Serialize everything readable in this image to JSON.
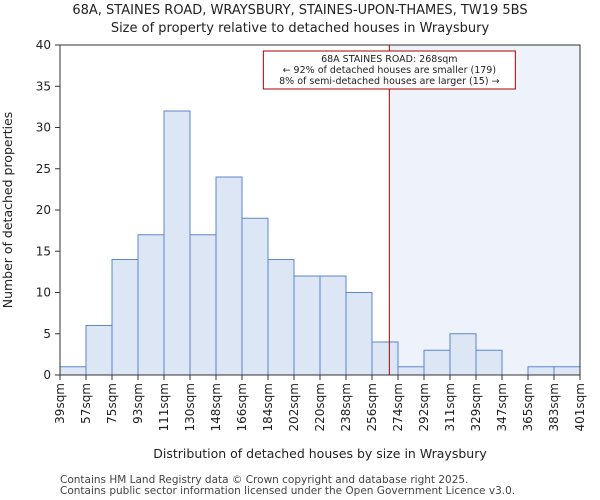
{
  "chart_data": {
    "type": "bar",
    "title": "68A, STAINES ROAD, WRAYSBURY, STAINES-UPON-THAMES, TW19 5BS",
    "subtitle": "Size of property relative to detached houses in Wraysbury",
    "xlabel": "Distribution of detached houses by size in Wraysbury",
    "ylabel": "Number of detached properties",
    "bin_edges": [
      39,
      57,
      75,
      93,
      111,
      130,
      148,
      166,
      184,
      202,
      220,
      238,
      256,
      274,
      292,
      311,
      329,
      347,
      365,
      383,
      401
    ],
    "tick_labels": [
      "39sqm",
      "57sqm",
      "75sqm",
      "93sqm",
      "111sqm",
      "130sqm",
      "148sqm",
      "166sqm",
      "184sqm",
      "202sqm",
      "220sqm",
      "238sqm",
      "256sqm",
      "274sqm",
      "292sqm",
      "311sqm",
      "329sqm",
      "347sqm",
      "365sqm",
      "383sqm",
      "401sqm"
    ],
    "values": [
      1,
      6,
      14,
      17,
      32,
      17,
      24,
      19,
      14,
      12,
      12,
      10,
      4,
      1,
      3,
      5,
      3,
      0,
      1,
      1
    ],
    "ylim": [
      0,
      40
    ],
    "yticks": [
      0,
      5,
      10,
      15,
      20,
      25,
      30,
      35,
      40
    ],
    "marker": {
      "value": 268,
      "line1": "68A STAINES ROAD: 268sqm",
      "line2": "← 92% of detached houses are smaller (179)",
      "line3": "8% of semi-detached houses are larger (15) →"
    },
    "colors": {
      "bar_fill": "#dce6f5",
      "bar_edge": "#5b87c9",
      "marker": "#aa0000",
      "shade": "#eef2fb"
    }
  },
  "footer": {
    "line1": "Contains HM Land Registry data © Crown copyright and database right 2025.",
    "line2": "Contains public sector information licensed under the Open Government Licence v3.0."
  }
}
